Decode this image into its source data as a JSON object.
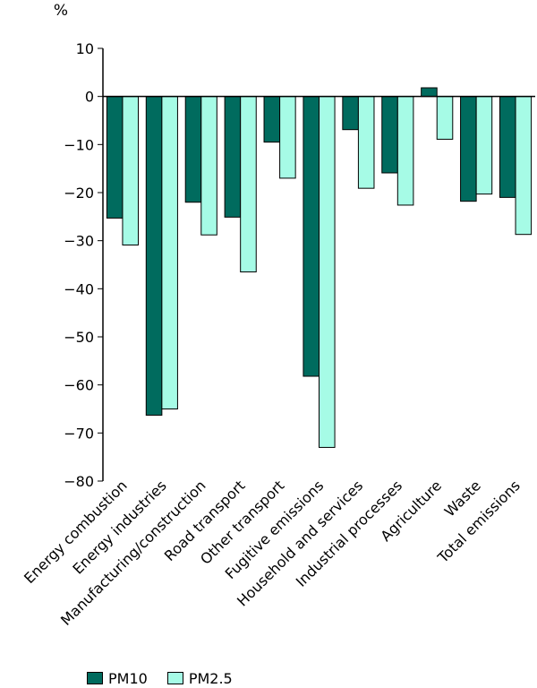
{
  "chart_data": {
    "type": "bar",
    "title": "",
    "ylabel": "%",
    "xlabel": "",
    "ylim": [
      -80,
      10
    ],
    "yticks": [
      10,
      0,
      -10,
      -20,
      -30,
      -40,
      -50,
      -60,
      -70,
      -80
    ],
    "ytick_labels": [
      "10",
      "0",
      "-10",
      "-20",
      "-30",
      "-40",
      "-50",
      "-60",
      "-70",
      "-80"
    ],
    "categories": [
      "Energy combustion",
      "Energy industries",
      "Manufacturing/construction",
      "Road transport",
      "Other transport",
      "Fugitive emissions",
      "Household and services",
      "Industrial processes",
      "Agriculture",
      "Waste",
      "Total emissions"
    ],
    "series": [
      {
        "name": "PM10",
        "color": "#006b5e",
        "values": [
          -25.3,
          -66.3,
          -22.0,
          -25.1,
          -9.5,
          -58.2,
          -6.9,
          -15.9,
          1.8,
          -21.8,
          -21.0
        ]
      },
      {
        "name": "PM2.5",
        "color": "#a6fbe6",
        "values": [
          -30.9,
          -65.0,
          -28.8,
          -36.5,
          -17.0,
          -73.0,
          -19.1,
          -22.6,
          -8.9,
          -20.3,
          -28.7
        ]
      }
    ],
    "grid": false,
    "legend": "bottom-left"
  }
}
